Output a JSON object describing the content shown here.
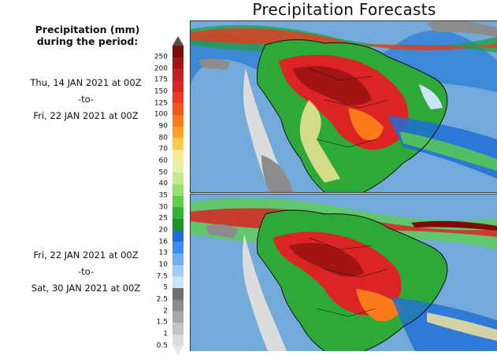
{
  "title": "Precipitation Forecasts",
  "legend": {
    "title_line1": "Precipitation (mm)",
    "title_line2": "during the period:",
    "levels": [
      "250",
      "200",
      "175",
      "150",
      "125",
      "100",
      "90",
      "80",
      "70",
      "60",
      "50",
      "40",
      "35",
      "30",
      "25",
      "20",
      "16",
      "13",
      "10",
      "7.5",
      "5",
      "2.5",
      "2",
      "1.5",
      "1",
      "0.5"
    ],
    "colors": [
      "#7a0c0c",
      "#a31414",
      "#c41e1e",
      "#dc2424",
      "#ee3a1e",
      "#f5561c",
      "#fb7a1c",
      "#fda324",
      "#fdc94c",
      "#fde89a",
      "#e5f3a8",
      "#c4ec94",
      "#98e070",
      "#5ccf48",
      "#2eb634",
      "#1a942c",
      "#1f6ed6",
      "#3c8ff0",
      "#6fb0f5",
      "#a0cdf7",
      "#cce4f9",
      "#707070",
      "#8c8c8c",
      "#a8a8a8",
      "#c4c4c4",
      "#dcdcdc"
    ]
  },
  "periods": [
    {
      "start": "Thu, 14 JAN 2021 at 00Z",
      "sep": "-to-",
      "end": "Fri, 22 JAN 2021 at 00Z"
    },
    {
      "start": "Fri, 22 JAN 2021 at 00Z",
      "sep": "-to-",
      "end": "Sat, 30 JAN 2021 at 00Z"
    }
  ]
}
